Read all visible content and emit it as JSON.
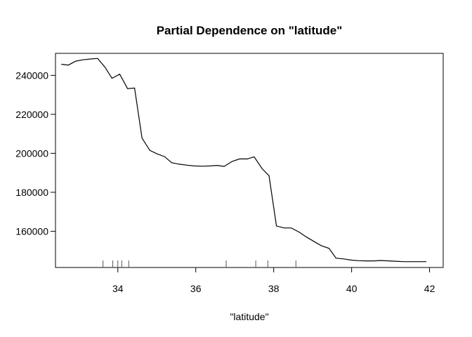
{
  "chart_data": {
    "type": "line",
    "title": "Partial Dependence on \"latitude\"",
    "xlabel": "\"latitude\"",
    "ylabel": "",
    "xlim": [
      32.4,
      42.35
    ],
    "ylim": [
      141400,
      251300
    ],
    "x_ticks": [
      34,
      36,
      38,
      40,
      42
    ],
    "y_ticks": [
      160000,
      180000,
      200000,
      220000,
      240000
    ],
    "grid": false,
    "line_color": "#000000",
    "rug": [
      33.62,
      33.87,
      34.0,
      34.1,
      34.28,
      36.78,
      37.54,
      37.85,
      38.57
    ],
    "series": [
      {
        "x": [
          32.55,
          32.73,
          32.92,
          33.1,
          33.3,
          33.48,
          33.67,
          33.85,
          34.05,
          34.25,
          34.43,
          34.62,
          34.82,
          35.0,
          35.2,
          35.38,
          35.58,
          35.78,
          35.97,
          36.17,
          36.35,
          36.55,
          36.73,
          36.93,
          37.12,
          37.32,
          37.5,
          37.7,
          37.88,
          38.07,
          38.27,
          38.45,
          38.65,
          38.83,
          39.03,
          39.22,
          39.42,
          39.6,
          39.8,
          40.0,
          40.18,
          40.38,
          40.57,
          40.75,
          40.95,
          41.13,
          41.33,
          41.52,
          41.72,
          41.92
        ],
        "y": [
          245700,
          245300,
          247300,
          248000,
          248400,
          248700,
          244200,
          238500,
          240600,
          233200,
          233500,
          207800,
          201500,
          199800,
          198300,
          195200,
          194400,
          193900,
          193500,
          193400,
          193500,
          193800,
          193300,
          195800,
          197100,
          197100,
          198200,
          192200,
          188500,
          162700,
          161700,
          161700,
          159600,
          157200,
          154800,
          152600,
          151200,
          146200,
          145800,
          145200,
          144900,
          144800,
          144800,
          145000,
          144800,
          144600,
          144400,
          144400,
          144400,
          144400
        ]
      }
    ]
  }
}
